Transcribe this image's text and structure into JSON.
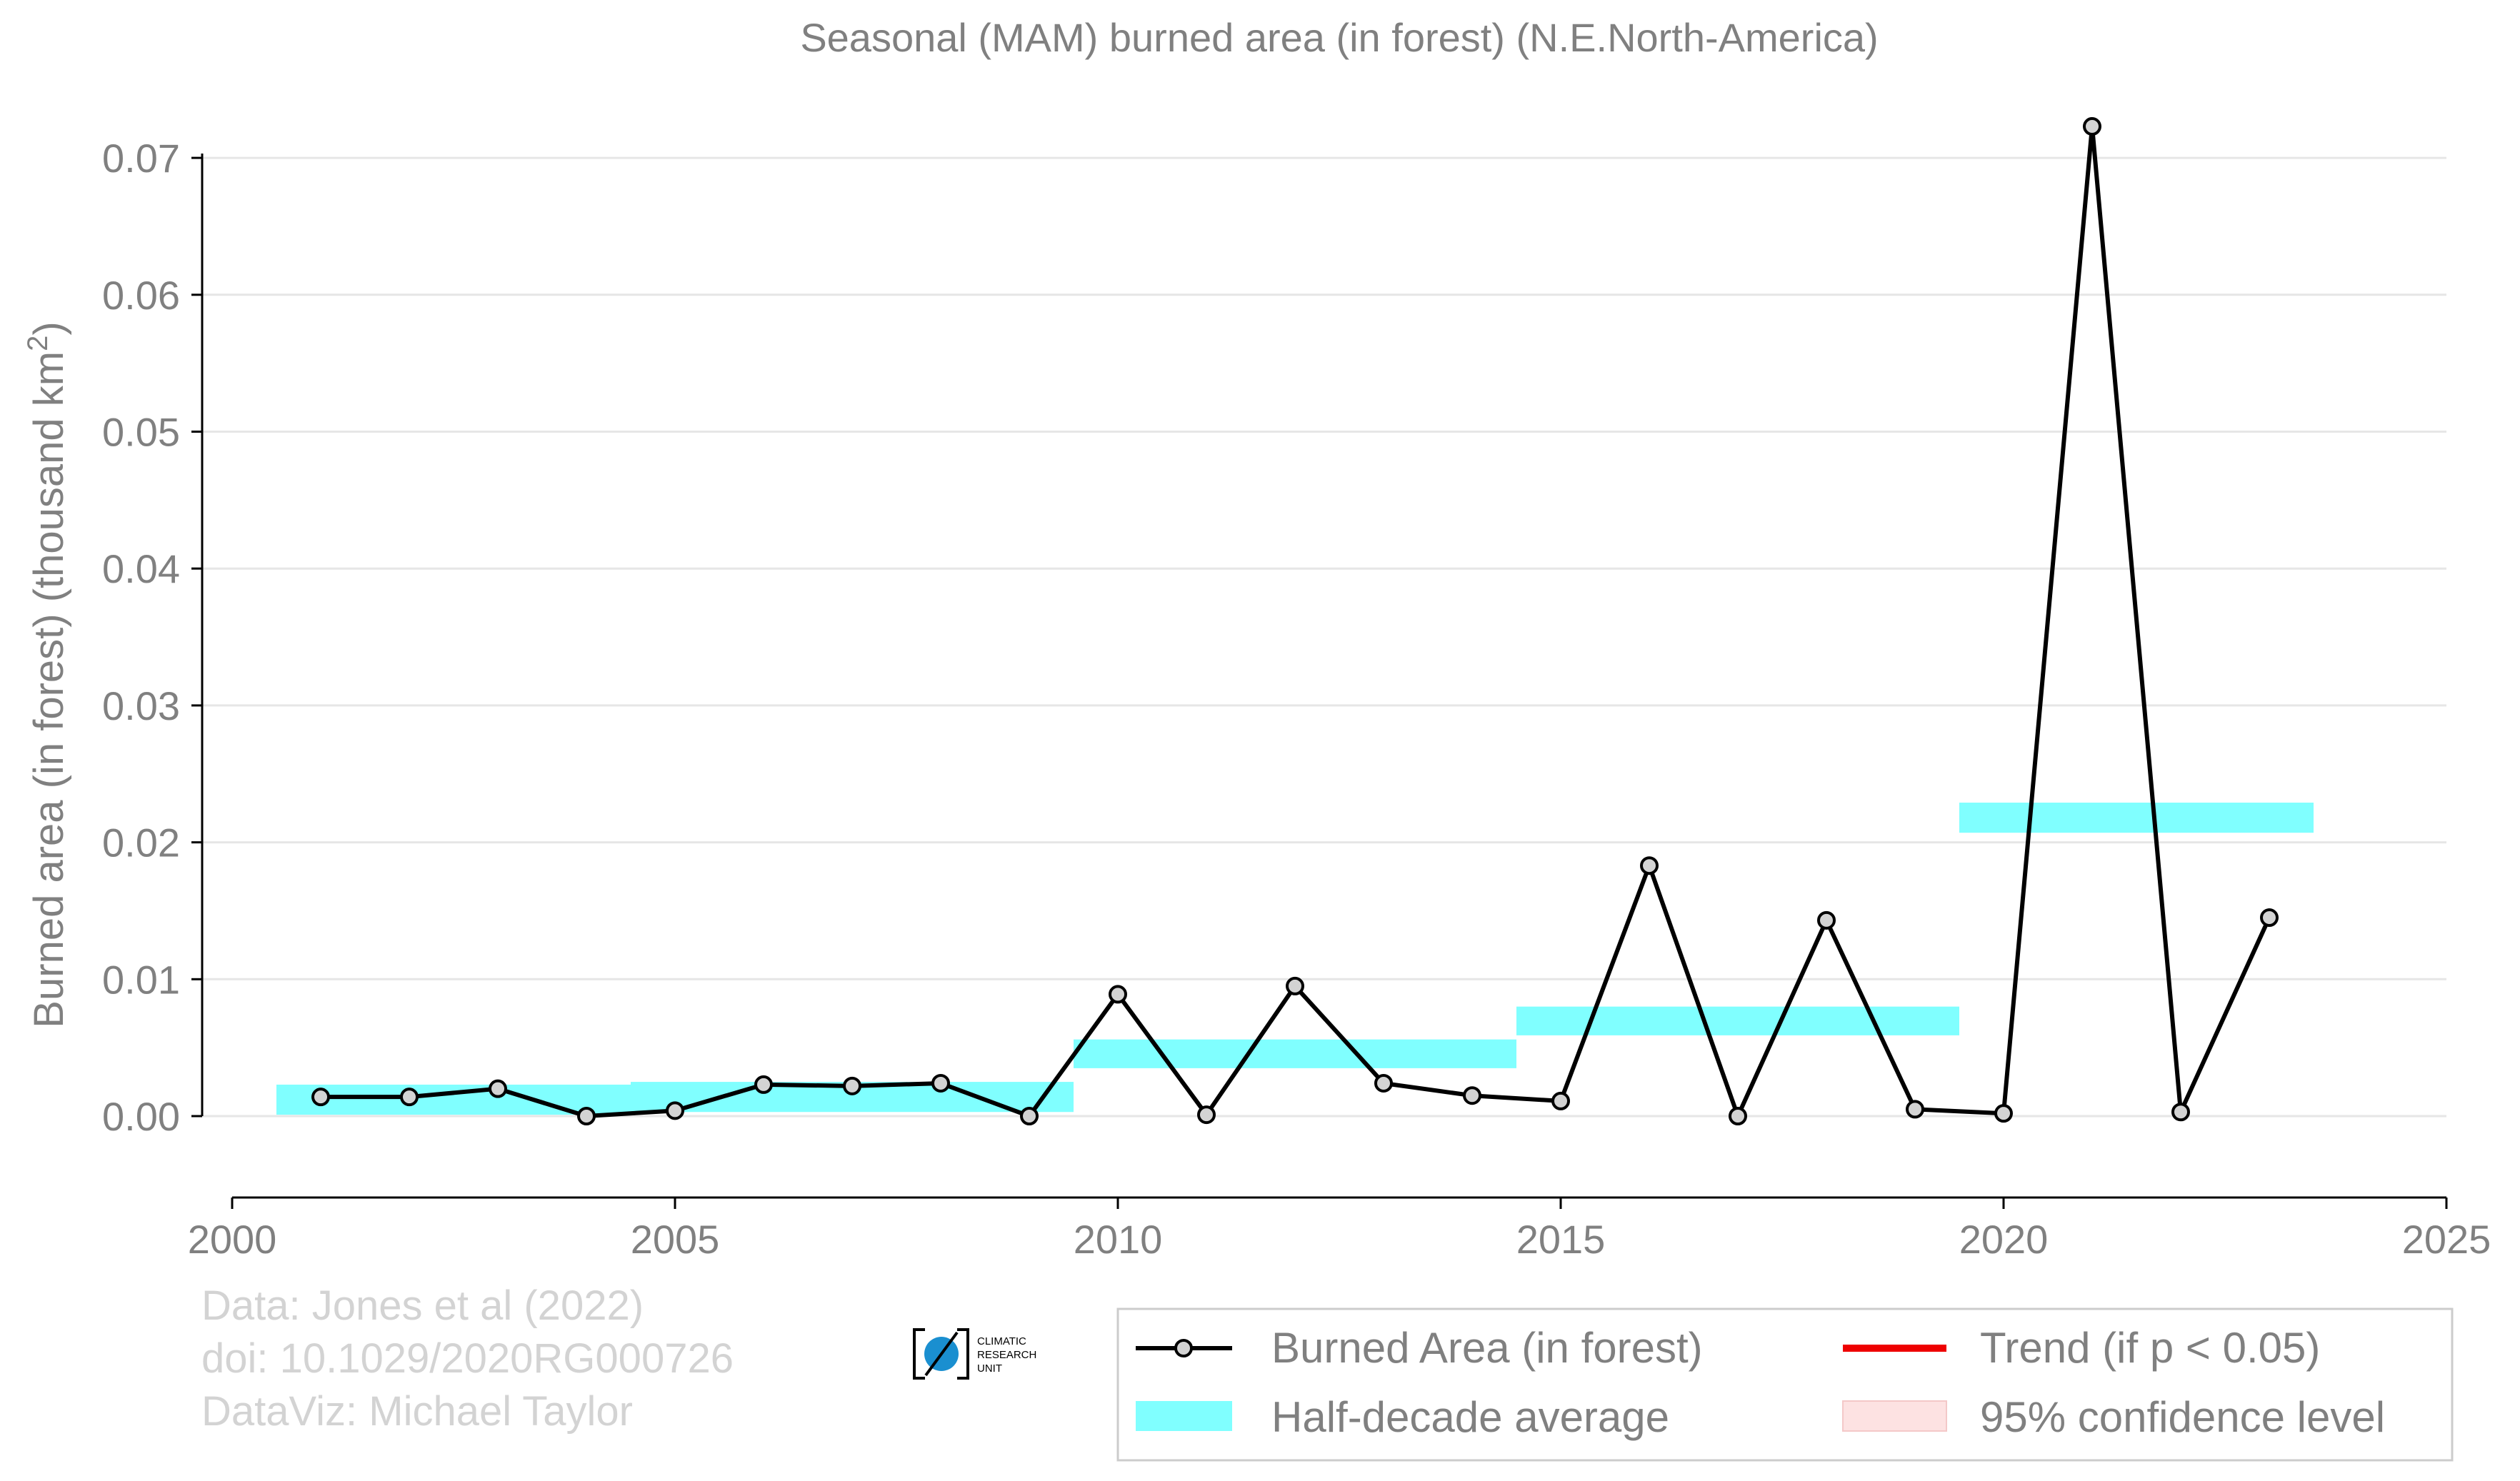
{
  "chart_data": {
    "type": "line",
    "title": "Seasonal (MAM) burned area (in forest) (N.E.North-America)",
    "ylabel": "Burned area (in forest) (thousand km",
    "ylabel_sup": "2",
    "ylabel_close": ")",
    "xlim": [
      2000,
      2025
    ],
    "ylim": [
      -0.006,
      0.072
    ],
    "x_ticks": [
      2000,
      2005,
      2010,
      2015,
      2020,
      2025
    ],
    "y_ticks": [
      0.0,
      0.01,
      0.02,
      0.03,
      0.04,
      0.05,
      0.06,
      0.07
    ],
    "y_tick_labels": [
      "0.00",
      "0.01",
      "0.02",
      "0.03",
      "0.04",
      "0.05",
      "0.06",
      "0.07"
    ],
    "grid": "horizontal",
    "series": [
      {
        "name": "Burned Area (in forest)",
        "color": "#000000",
        "marker_fill": "#d3d3d3",
        "x": [
          2001,
          2002,
          2003,
          2004,
          2005,
          2006,
          2007,
          2008,
          2009,
          2010,
          2011,
          2012,
          2013,
          2014,
          2015,
          2016,
          2017,
          2018,
          2019,
          2020,
          2021,
          2022,
          2023
        ],
        "y": [
          0.0014,
          0.0014,
          0.002,
          0.0,
          0.0004,
          0.0023,
          0.0022,
          0.0024,
          0.0,
          0.0089,
          0.0001,
          0.0095,
          0.0024,
          0.0015,
          0.0011,
          0.0183,
          0.0,
          0.0143,
          0.0005,
          0.0002,
          0.0723,
          0.0003,
          0.0145
        ]
      }
    ],
    "half_decade_average": {
      "name": "Half-decade average",
      "color": "#80ffff",
      "bands": [
        {
          "x_start": 2000.5,
          "x_end": 2004.5,
          "low": 0.0001,
          "high": 0.0023
        },
        {
          "x_start": 2004.5,
          "x_end": 2009.5,
          "low": 0.0003,
          "high": 0.0025
        },
        {
          "x_start": 2009.5,
          "x_end": 2014.5,
          "low": 0.0035,
          "high": 0.0056
        },
        {
          "x_start": 2014.5,
          "x_end": 2019.5,
          "low": 0.0059,
          "high": 0.008
        },
        {
          "x_start": 2019.5,
          "x_end": 2023.5,
          "low": 0.0207,
          "high": 0.0229
        }
      ]
    },
    "legend": {
      "placement": "bottom-right",
      "entries": [
        {
          "label": "Burned Area (in forest)",
          "kind": "line-marker",
          "color": "#000000"
        },
        {
          "label": "Trend (if p < 0.05)",
          "kind": "line",
          "color": "#ee0000"
        },
        {
          "label": "Half-decade average",
          "kind": "band",
          "color": "#80ffff"
        },
        {
          "label": "95% confidence level",
          "kind": "band",
          "color": "#fde2e2"
        }
      ]
    }
  },
  "credits": {
    "line1": "Data: Jones et al (2022)",
    "line2": "doi: 10.1029/2020RG000726",
    "line3": "DataViz: Michael Taylor"
  },
  "logo": {
    "text1": "CLIMATIC",
    "text2": "RESEARCH",
    "text3": "UNIT",
    "color": "#1a8fd0"
  }
}
